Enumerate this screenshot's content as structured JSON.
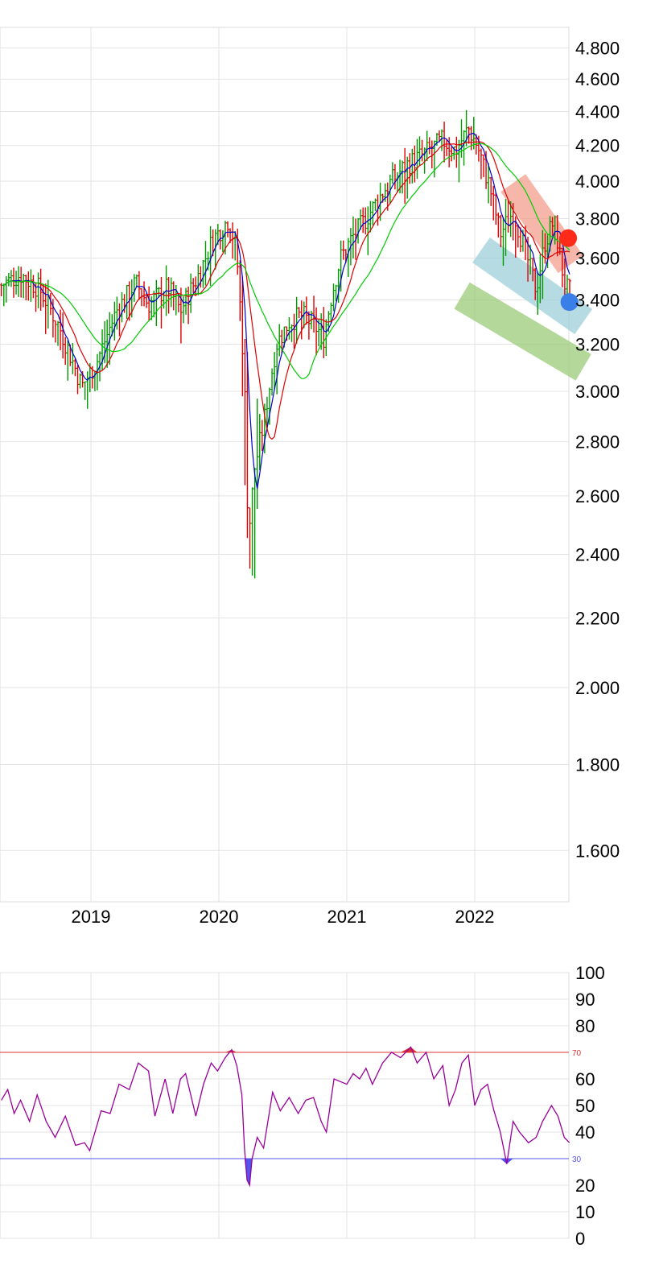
{
  "chart_data": [
    {
      "type": "candlestick",
      "scale": "log",
      "y_ticks": [
        {
          "value": 4800,
          "label": "4.800"
        },
        {
          "value": 4600,
          "label": "4.600"
        },
        {
          "value": 4400,
          "label": "4.400"
        },
        {
          "value": 4200,
          "label": "4.200"
        },
        {
          "value": 4000,
          "label": "4.000"
        },
        {
          "value": 3800,
          "label": "3.800"
        },
        {
          "value": 3600,
          "label": "3.600"
        },
        {
          "value": 3400,
          "label": "3.400"
        },
        {
          "value": 3200,
          "label": "3.200"
        },
        {
          "value": 3000,
          "label": "3.000"
        },
        {
          "value": 2800,
          "label": "2.800"
        },
        {
          "value": 2600,
          "label": "2.600"
        },
        {
          "value": 2400,
          "label": "2.400"
        },
        {
          "value": 2200,
          "label": "2.200"
        },
        {
          "value": 2000,
          "label": "2.000"
        },
        {
          "value": 1800,
          "label": "1.800"
        },
        {
          "value": 1600,
          "label": "1.600"
        }
      ],
      "x_ticks": [
        {
          "year": 2019,
          "label": "2019"
        },
        {
          "year": 2020,
          "label": "2020"
        },
        {
          "year": 2021,
          "label": "2021"
        },
        {
          "year": 2022,
          "label": "2022"
        }
      ],
      "x_range": [
        2018.3,
        2022.75
      ],
      "grid": true,
      "price_path": [
        [
          2018.3,
          3470
        ],
        [
          2018.45,
          3520
        ],
        [
          2018.6,
          3450
        ],
        [
          2018.75,
          3280
        ],
        [
          2018.93,
          3020
        ],
        [
          2019.05,
          3130
        ],
        [
          2019.2,
          3350
        ],
        [
          2019.35,
          3480
        ],
        [
          2019.45,
          3380
        ],
        [
          2019.6,
          3460
        ],
        [
          2019.7,
          3350
        ],
        [
          2019.85,
          3530
        ],
        [
          2019.95,
          3690
        ],
        [
          2020.08,
          3800
        ],
        [
          2020.14,
          3620
        ],
        [
          2020.2,
          3050
        ],
        [
          2020.23,
          2450
        ],
        [
          2020.28,
          2700
        ],
        [
          2020.35,
          2870
        ],
        [
          2020.45,
          3200
        ],
        [
          2020.55,
          3300
        ],
        [
          2020.65,
          3330
        ],
        [
          2020.75,
          3280
        ],
        [
          2020.82,
          3230
        ],
        [
          2020.88,
          3420
        ],
        [
          2020.95,
          3600
        ],
        [
          2021.05,
          3710
        ],
        [
          2021.15,
          3800
        ],
        [
          2021.3,
          3960
        ],
        [
          2021.45,
          4080
        ],
        [
          2021.6,
          4150
        ],
        [
          2021.75,
          4230
        ],
        [
          2021.85,
          4170
        ],
        [
          2021.95,
          4300
        ],
        [
          2022.02,
          4200
        ],
        [
          2022.12,
          3960
        ],
        [
          2022.2,
          3720
        ],
        [
          2022.3,
          3840
        ],
        [
          2022.4,
          3620
        ],
        [
          2022.48,
          3450
        ],
        [
          2022.55,
          3680
        ],
        [
          2022.62,
          3790
        ],
        [
          2022.7,
          3480
        ],
        [
          2022.73,
          3440
        ]
      ],
      "series": [
        {
          "color": "#0000cc",
          "smoothing": "fast"
        },
        {
          "color": "#dd0000",
          "smoothing": "medium"
        },
        {
          "color": "#00cc00",
          "smoothing": "slow"
        }
      ],
      "channels": [
        {
          "color": "#f4a08e",
          "from": [
            2022.3,
            3990
          ],
          "to": [
            2022.75,
            3570
          ]
        },
        {
          "color": "#9ecfda",
          "from": [
            2022.05,
            3640
          ],
          "to": [
            2022.85,
            3300
          ]
        },
        {
          "color": "#9bcc78",
          "from": [
            2021.9,
            3420
          ],
          "to": [
            2022.85,
            3100
          ]
        }
      ],
      "markers": [
        {
          "color": "#ff2a1a",
          "value": 3700,
          "x": 2022.73
        },
        {
          "color": "#3a7ee8",
          "value": 3390,
          "x": 2022.74
        }
      ]
    },
    {
      "type": "line",
      "ylim": [
        0,
        100
      ],
      "y_ticks": [
        {
          "value": 100,
          "label": "100"
        },
        {
          "value": 90,
          "label": "90"
        },
        {
          "value": 80,
          "label": "80"
        },
        {
          "value": 60,
          "label": "60"
        },
        {
          "value": 50,
          "label": "50"
        },
        {
          "value": 40,
          "label": "40"
        },
        {
          "value": 20,
          "label": "20"
        },
        {
          "value": 10,
          "label": "10"
        },
        {
          "value": 0,
          "label": "0"
        }
      ],
      "upper_band": {
        "value": 70,
        "label": "70",
        "color": "#dd3333"
      },
      "lower_band": {
        "value": 30,
        "label": "30",
        "color": "#5555ee"
      },
      "line_color": "#990099",
      "values": [
        [
          2018.3,
          52
        ],
        [
          2018.35,
          56
        ],
        [
          2018.4,
          47
        ],
        [
          2018.45,
          52
        ],
        [
          2018.52,
          44
        ],
        [
          2018.58,
          54
        ],
        [
          2018.65,
          44
        ],
        [
          2018.72,
          38
        ],
        [
          2018.8,
          46
        ],
        [
          2018.88,
          35
        ],
        [
          2018.95,
          36
        ],
        [
          2018.99,
          33
        ],
        [
          2019.08,
          48
        ],
        [
          2019.15,
          47
        ],
        [
          2019.22,
          58
        ],
        [
          2019.3,
          56
        ],
        [
          2019.37,
          66
        ],
        [
          2019.45,
          63
        ],
        [
          2019.5,
          46
        ],
        [
          2019.58,
          60
        ],
        [
          2019.64,
          47
        ],
        [
          2019.7,
          60
        ],
        [
          2019.74,
          62
        ],
        [
          2019.82,
          46
        ],
        [
          2019.88,
          58
        ],
        [
          2019.94,
          66
        ],
        [
          2019.99,
          63
        ],
        [
          2020.05,
          68
        ],
        [
          2020.1,
          71
        ],
        [
          2020.14,
          65
        ],
        [
          2020.18,
          54
        ],
        [
          2020.2,
          34
        ],
        [
          2020.22,
          22
        ],
        [
          2020.24,
          20
        ],
        [
          2020.26,
          30
        ],
        [
          2020.3,
          38
        ],
        [
          2020.35,
          34
        ],
        [
          2020.42,
          55
        ],
        [
          2020.48,
          48
        ],
        [
          2020.55,
          53
        ],
        [
          2020.62,
          47
        ],
        [
          2020.68,
          52
        ],
        [
          2020.74,
          53
        ],
        [
          2020.8,
          44
        ],
        [
          2020.84,
          40
        ],
        [
          2020.9,
          60
        ],
        [
          2021.0,
          58
        ],
        [
          2021.05,
          62
        ],
        [
          2021.1,
          60
        ],
        [
          2021.15,
          64
        ],
        [
          2021.2,
          58
        ],
        [
          2021.28,
          66
        ],
        [
          2021.35,
          70
        ],
        [
          2021.42,
          68
        ],
        [
          2021.5,
          72
        ],
        [
          2021.55,
          66
        ],
        [
          2021.62,
          70
        ],
        [
          2021.68,
          60
        ],
        [
          2021.75,
          65
        ],
        [
          2021.8,
          50
        ],
        [
          2021.85,
          56
        ],
        [
          2021.9,
          66
        ],
        [
          2021.95,
          69
        ],
        [
          2022.0,
          50
        ],
        [
          2022.05,
          56
        ],
        [
          2022.1,
          58
        ],
        [
          2022.15,
          48
        ],
        [
          2022.2,
          40
        ],
        [
          2022.25,
          28
        ],
        [
          2022.3,
          44
        ],
        [
          2022.35,
          40
        ],
        [
          2022.42,
          36
        ],
        [
          2022.48,
          38
        ],
        [
          2022.53,
          44
        ],
        [
          2022.6,
          50
        ],
        [
          2022.65,
          46
        ],
        [
          2022.7,
          38
        ],
        [
          2022.74,
          36
        ]
      ]
    }
  ]
}
